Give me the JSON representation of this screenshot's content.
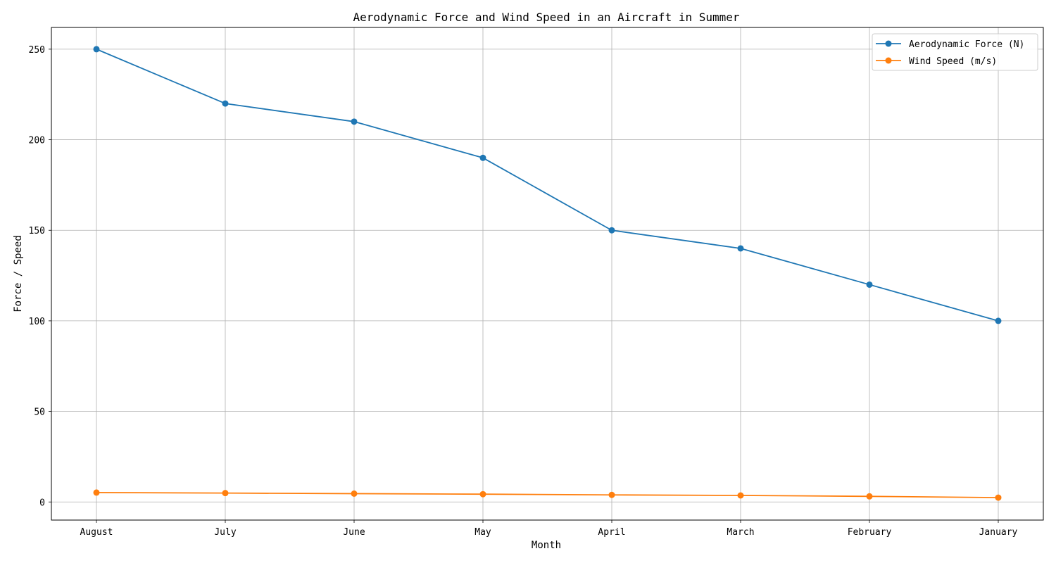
{
  "chart_data": {
    "type": "line",
    "title": "Aerodynamic Force and Wind Speed in an Aircraft in Summer",
    "xlabel": "Month",
    "ylabel": "Force / Speed",
    "categories": [
      "August",
      "July",
      "June",
      "May",
      "April",
      "March",
      "February",
      "January"
    ],
    "ylim": [
      -10,
      262
    ],
    "yticks": [
      0,
      50,
      100,
      150,
      200,
      250
    ],
    "grid": true,
    "legend_position": "top-right",
    "series": [
      {
        "name": "Aerodynamic Force (N)",
        "color": "#1f77b4",
        "marker": "circle",
        "values": [
          250,
          220,
          210,
          190,
          150,
          140,
          120,
          100
        ]
      },
      {
        "name": "Wind Speed (m/s)",
        "color": "#ff7f0e",
        "marker": "circle",
        "values": [
          5.2,
          4.9,
          4.6,
          4.3,
          3.9,
          3.6,
          3.1,
          2.4
        ]
      }
    ]
  }
}
